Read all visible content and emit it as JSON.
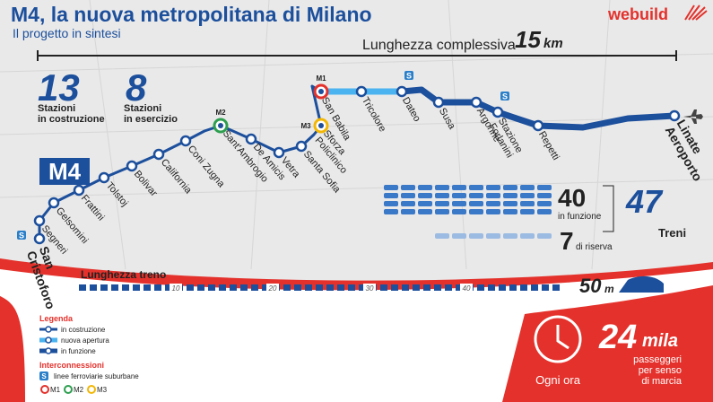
{
  "header": {
    "title": "M4, la nuova metropolitana di Milano",
    "subtitle": "Il progetto in sintesi",
    "logo": "webuild"
  },
  "total_length": {
    "label": "Lunghezza complessiva",
    "value": 15,
    "unit": "km"
  },
  "stats": [
    {
      "value": 13,
      "label_lines": [
        "Stazioni",
        "in costruzione"
      ]
    },
    {
      "value": 8,
      "label_lines": [
        "Stazioni",
        "in esercizio"
      ]
    }
  ],
  "line_badge": "M4",
  "stations": [
    {
      "name_lines": [
        "San",
        "Cristoforo"
      ],
      "status": "construction",
      "terminal": true,
      "interchange": "S"
    },
    {
      "name_lines": [
        "Segneri"
      ],
      "status": "construction"
    },
    {
      "name_lines": [
        "Gelsomini"
      ],
      "status": "construction"
    },
    {
      "name_lines": [
        "Frattini"
      ],
      "status": "construction"
    },
    {
      "name_lines": [
        "Tolstoj"
      ],
      "status": "construction"
    },
    {
      "name_lines": [
        "Bolivar"
      ],
      "status": "construction"
    },
    {
      "name_lines": [
        "California"
      ],
      "status": "construction"
    },
    {
      "name_lines": [
        "Coni Zugna"
      ],
      "status": "construction"
    },
    {
      "name_lines": [
        "Sant'Ambrogio"
      ],
      "status": "construction",
      "interchange": "M2"
    },
    {
      "name_lines": [
        "De Amicis"
      ],
      "status": "construction"
    },
    {
      "name_lines": [
        "Vetra"
      ],
      "status": "construction"
    },
    {
      "name_lines": [
        "Santa Sofia"
      ],
      "status": "construction"
    },
    {
      "name_lines": [
        "Sforza",
        "Policlinico"
      ],
      "status": "construction",
      "interchange": "M3"
    },
    {
      "name_lines": [
        "San Babila"
      ],
      "status": "new",
      "interchange": "M1"
    },
    {
      "name_lines": [
        "Tricolore"
      ],
      "status": "new"
    },
    {
      "name_lines": [
        "Dateo"
      ],
      "status": "active",
      "interchange": "S"
    },
    {
      "name_lines": [
        "Susa"
      ],
      "status": "active"
    },
    {
      "name_lines": [
        "Argonne"
      ],
      "status": "active"
    },
    {
      "name_lines": [
        "Stazione",
        "Forlanini"
      ],
      "status": "active",
      "interchange": "S"
    },
    {
      "name_lines": [
        "Repetti"
      ],
      "status": "active"
    },
    {
      "name_lines": [
        "Linate",
        "Aeroporto"
      ],
      "status": "active",
      "terminal": true
    }
  ],
  "trains": {
    "in_service": {
      "value": 40,
      "label": "in funzione"
    },
    "reserve": {
      "value": 7,
      "label": "di riserva"
    },
    "total": {
      "value": 47,
      "label": "Treni"
    }
  },
  "train_length": {
    "label": "Lunghezza treno",
    "scale": [
      10,
      20,
      30,
      40
    ],
    "value": 50,
    "unit": "m"
  },
  "legend": {
    "title": "Legenda",
    "items": [
      {
        "status": "construction",
        "label": "in costruzione"
      },
      {
        "status": "new",
        "label": "nuova apertura"
      },
      {
        "status": "active",
        "label": "in funzione"
      }
    ],
    "interconnections_title": "Interconnessioni",
    "suburban": {
      "badge": "S",
      "label": "linee ferroviarie suburbane"
    },
    "metro": [
      "M1",
      "M2",
      "M3"
    ]
  },
  "capacity": {
    "period": "Ogni ora",
    "value": 24,
    "unit": "mila",
    "label_lines": [
      "passeggeri",
      "per senso",
      "di marcia"
    ]
  }
}
